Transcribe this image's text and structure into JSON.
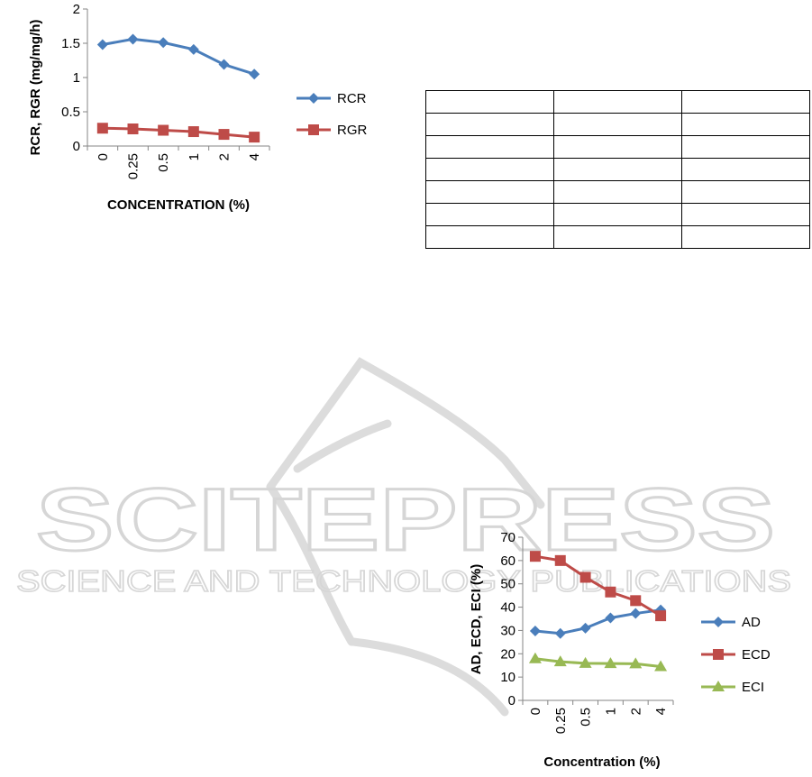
{
  "chart_data": [
    {
      "type": "line",
      "categories": [
        "0",
        "0.25",
        "0.5",
        "1",
        "2",
        "4"
      ],
      "series": [
        {
          "name": "RCR",
          "values": [
            1.48,
            1.56,
            1.51,
            1.41,
            1.19,
            1.05
          ],
          "color": "#4a7ebb",
          "marker": "diamond"
        },
        {
          "name": "RGR",
          "values": [
            0.26,
            0.25,
            0.23,
            0.21,
            0.17,
            0.13
          ],
          "color": "#be4b48",
          "marker": "square"
        }
      ],
      "title": "",
      "xlabel": "CONCENTRATION (%)",
      "ylabel": "RCR, RGR (mg/mg/h)",
      "ylim": [
        0,
        2
      ],
      "yticks": [
        "0",
        "0.5",
        "1",
        "1.5",
        "2"
      ],
      "grid": false,
      "legend": "right"
    },
    {
      "type": "line",
      "categories": [
        "0",
        "0.25",
        "0.5",
        "1",
        "2",
        "4"
      ],
      "series": [
        {
          "name": "AD",
          "values": [
            29.8,
            28.7,
            31.0,
            35.4,
            37.3,
            38.8
          ],
          "color": "#4a7ebb",
          "marker": "diamond"
        },
        {
          "name": "ECD",
          "values": [
            61.8,
            60.0,
            52.8,
            46.5,
            42.8,
            36.3
          ],
          "color": "#be4b48",
          "marker": "square"
        },
        {
          "name": "ECI",
          "values": [
            17.9,
            16.6,
            15.9,
            15.8,
            15.7,
            14.5
          ],
          "color": "#98b954",
          "marker": "triangle"
        }
      ],
      "title": "",
      "xlabel": "Concentration (%)",
      "ylabel": "AD, ECD, ECI (%)",
      "ylim": [
        0,
        70
      ],
      "yticks": [
        "0",
        "10",
        "20",
        "30",
        "40",
        "50",
        "60",
        "70"
      ],
      "grid": false,
      "legend": "right"
    }
  ],
  "table": {
    "rows": 7,
    "cols": 3
  },
  "watermark": {
    "title": "SCITEPRESS",
    "subtitle": "SCIENCE AND TECHNOLOGY PUBLICATIONS",
    "color": "#d9d9d9"
  }
}
